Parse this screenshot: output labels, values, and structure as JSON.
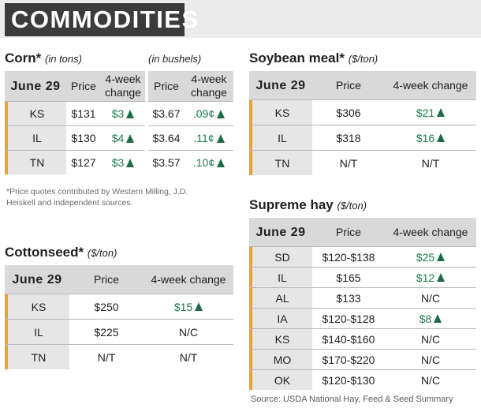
{
  "banner": {
    "title": "COMMODITIES"
  },
  "corn": {
    "title": "Corn*",
    "unit_tons": "(in tons)",
    "unit_bushels": "(in bushels)",
    "headers": {
      "date": "June 29",
      "price": "Price",
      "change": "4-week change"
    },
    "rows": [
      {
        "state": "KS",
        "price_tons": "$131",
        "change_tons": "$3",
        "price_bu": "$3.67",
        "change_bu": ".09¢"
      },
      {
        "state": "IL",
        "price_tons": "$130",
        "change_tons": "$4",
        "price_bu": "$3.64",
        "change_bu": ".11¢"
      },
      {
        "state": "TN",
        "price_tons": "$127",
        "change_tons": "$3",
        "price_bu": "$3.57",
        "change_bu": ".10¢"
      }
    ]
  },
  "footnote": "*Price quotes contributed by Western Milling, J.D. Heiskell and independent sources.",
  "cottonseed": {
    "title": "Cottonseed*",
    "unit": "($/ton)",
    "headers": {
      "date": "June 29",
      "price": "Price",
      "change": "4-week change"
    },
    "rows": [
      {
        "state": "KS",
        "price": "$250",
        "change": "$15",
        "up": true
      },
      {
        "state": "IL",
        "price": "$225",
        "change": "N/C",
        "up": false
      },
      {
        "state": "TN",
        "price": "N/T",
        "change": "N/T",
        "up": false
      }
    ]
  },
  "soybean": {
    "title": "Soybean meal*",
    "unit": "($/ton)",
    "headers": {
      "date": "June 29",
      "price": "Price",
      "change": "4-week change"
    },
    "rows": [
      {
        "state": "KS",
        "price": "$306",
        "change": "$21",
        "up": true
      },
      {
        "state": "IL",
        "price": "$318",
        "change": "$16",
        "up": true
      },
      {
        "state": "TN",
        "price": "N/T",
        "change": "N/T",
        "up": false
      }
    ]
  },
  "hay": {
    "title": "Supreme hay",
    "unit": "($/ton)",
    "headers": {
      "date": "June 29",
      "price": "Price",
      "change": "4-week change"
    },
    "rows": [
      {
        "state": "SD",
        "price": "$120-$138",
        "change": "$25",
        "up": true
      },
      {
        "state": "IL",
        "price": "$165",
        "change": "$12",
        "up": true
      },
      {
        "state": "AL",
        "price": "$133",
        "change": "N/C",
        "up": false
      },
      {
        "state": "IA",
        "price": "$120-$128",
        "change": "$8",
        "up": true
      },
      {
        "state": "KS",
        "price": "$140-$160",
        "change": "N/C",
        "up": false
      },
      {
        "state": "MO",
        "price": "$170-$220",
        "change": "N/C",
        "up": false
      },
      {
        "state": "OK",
        "price": "$120-$130",
        "change": "N/C",
        "up": false
      }
    ]
  },
  "source": "Source: USDA National Hay, Feed & Seed Summary",
  "colors": {
    "accent": "#e6a33a",
    "up": "#1e7a4b",
    "banner": "#3b3b3b"
  }
}
